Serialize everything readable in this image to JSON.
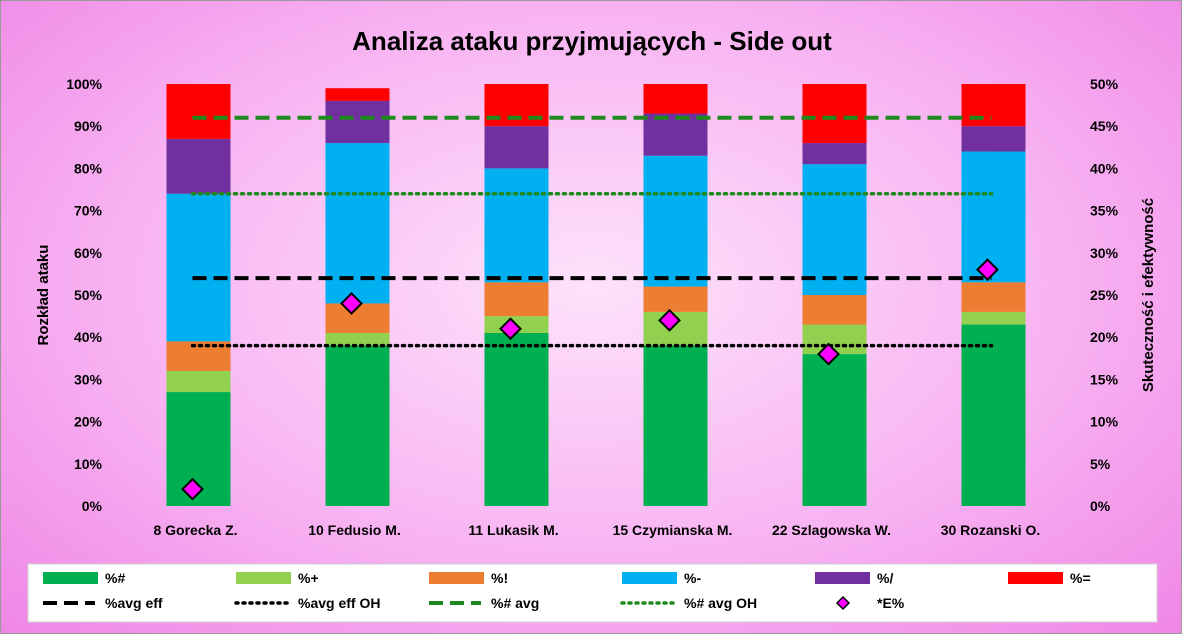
{
  "chart_data": {
    "type": "bar",
    "stacked": true,
    "title": "Analiza ataku przyjmujących - Side out",
    "ylabel": "Rozkład ataku",
    "y2label": "Skuteczność i efektywność",
    "ylim": [
      0,
      100
    ],
    "y2lim": [
      0,
      50
    ],
    "yticks": [
      "0%",
      "10%",
      "20%",
      "30%",
      "40%",
      "50%",
      "60%",
      "70%",
      "80%",
      "90%",
      "100%"
    ],
    "y2ticks": [
      "0%",
      "5%",
      "10%",
      "15%",
      "20%",
      "25%",
      "30%",
      "35%",
      "40%",
      "45%",
      "50%"
    ],
    "grid": false,
    "legend_position": "bottom",
    "categories": [
      "8 Gorecka Z.",
      "10 Fedusio M.",
      "11 Lukasik M.",
      "15 Czymianska M.",
      "22 Szlagowska W.",
      "30 Rozanski O."
    ],
    "series": [
      {
        "name": "%#",
        "color": "#00b050",
        "values": [
          27,
          38,
          41,
          38,
          36,
          43
        ]
      },
      {
        "name": "%+",
        "color": "#92d050",
        "values": [
          5,
          3,
          4,
          8,
          7,
          3
        ]
      },
      {
        "name": "%!",
        "color": "#ed7d31",
        "values": [
          7,
          7,
          8,
          6,
          7,
          7
        ]
      },
      {
        "name": "%-",
        "color": "#00b0f0",
        "values": [
          35,
          38,
          27,
          31,
          31,
          31
        ]
      },
      {
        "name": "%/",
        "color": "#7030a0",
        "values": [
          13,
          10,
          10,
          10,
          5,
          6
        ]
      },
      {
        "name": "%=",
        "color": "#ff0000",
        "values": [
          13,
          3,
          10,
          7,
          14,
          10
        ]
      }
    ],
    "lines": [
      {
        "name": "%avg eff",
        "axis": "secondary",
        "value": 27,
        "color": "#000000",
        "style": "dashed"
      },
      {
        "name": "%avg eff OH",
        "axis": "secondary",
        "value": 19,
        "color": "#000000",
        "style": "dotted"
      },
      {
        "name": "%# avg",
        "axis": "secondary",
        "value": 46,
        "color": "#1e8a1e",
        "style": "dashed"
      },
      {
        "name": "%# avg OH",
        "axis": "secondary",
        "value": 37,
        "color": "#1e8a1e",
        "style": "dotted"
      }
    ],
    "markers": {
      "name": "*E%",
      "axis": "secondary",
      "color": "#ff00ff",
      "values": [
        2,
        24,
        21,
        22,
        18,
        28
      ]
    },
    "legend_order": [
      "%#",
      "%+",
      "%!",
      "%-",
      "%/",
      "%=",
      "%avg eff",
      "%avg eff OH",
      "%# avg",
      "%# avg OH",
      "*E%"
    ]
  }
}
